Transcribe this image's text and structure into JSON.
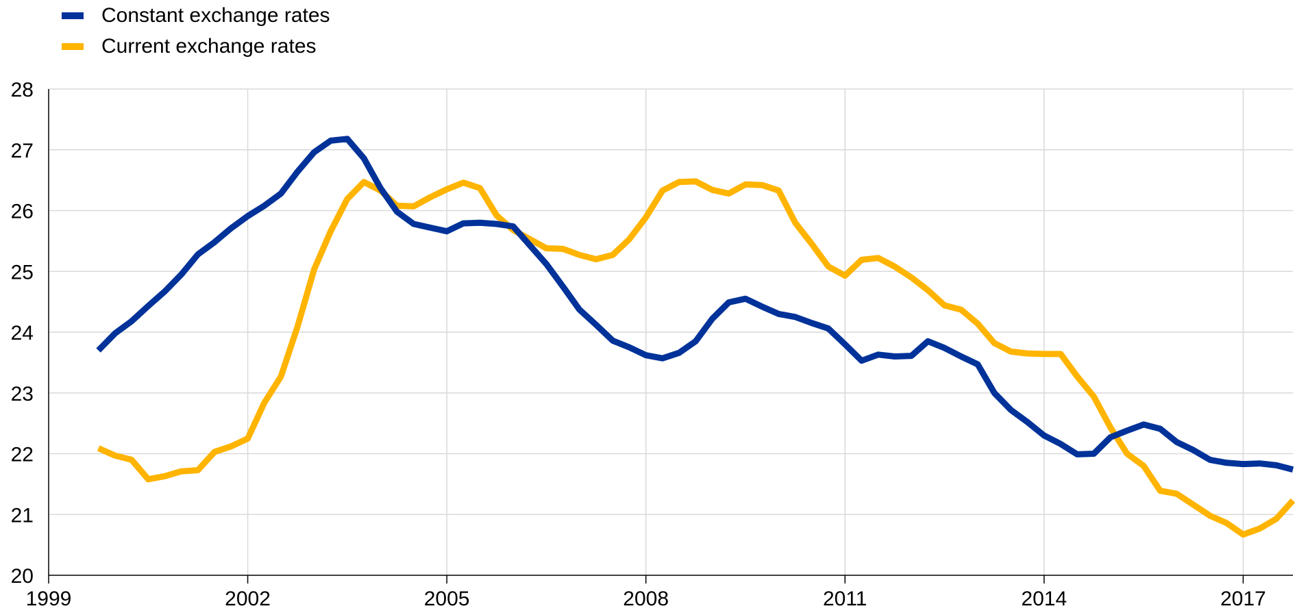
{
  "chart_data": {
    "type": "line",
    "title": "",
    "xlabel": "",
    "ylabel": "",
    "xlim": [
      1999,
      2017.75
    ],
    "ylim": [
      20,
      28
    ],
    "grid": true,
    "legend_position": "top-left",
    "x_ticks": [
      "1999",
      "2002",
      "2005",
      "2008",
      "2011",
      "2014",
      "2017"
    ],
    "y_ticks": [
      "20",
      "21",
      "22",
      "23",
      "24",
      "25",
      "26",
      "27",
      "28"
    ],
    "x": [
      1999.75,
      2000,
      2000.25,
      2000.5,
      2000.75,
      2001,
      2001.25,
      2001.5,
      2001.75,
      2002,
      2002.25,
      2002.5,
      2002.75,
      2003,
      2003.25,
      2003.5,
      2003.75,
      2004,
      2004.25,
      2004.5,
      2004.75,
      2005,
      2005.25,
      2005.5,
      2005.75,
      2006,
      2006.25,
      2006.5,
      2006.75,
      2007,
      2007.25,
      2007.5,
      2007.75,
      2008,
      2008.25,
      2008.5,
      2008.75,
      2009,
      2009.25,
      2009.5,
      2009.75,
      2010,
      2010.25,
      2010.5,
      2010.75,
      2011,
      2011.25,
      2011.5,
      2011.75,
      2012,
      2012.25,
      2012.5,
      2012.75,
      2013,
      2013.25,
      2013.5,
      2013.75,
      2014,
      2014.25,
      2014.5,
      2014.75,
      2015,
      2015.25,
      2015.5,
      2015.75,
      2016,
      2016.25,
      2016.5,
      2016.75,
      2017,
      2017.25,
      2017.5,
      2017.75
    ],
    "series": [
      {
        "name": "Constant exchange rates",
        "color": "#003299",
        "values": [
          23.7,
          23.98,
          24.18,
          24.43,
          24.67,
          24.95,
          25.28,
          25.48,
          25.71,
          25.91,
          26.08,
          26.28,
          26.64,
          26.96,
          27.15,
          27.18,
          26.86,
          26.37,
          25.98,
          25.78,
          25.72,
          25.66,
          25.79,
          25.8,
          25.78,
          25.74,
          25.43,
          25.12,
          24.75,
          24.37,
          24.12,
          23.86,
          23.75,
          23.62,
          23.57,
          23.66,
          23.85,
          24.22,
          24.49,
          24.55,
          24.42,
          24.3,
          24.25,
          24.15,
          24.06,
          23.8,
          23.53,
          23.63,
          23.6,
          23.61,
          23.85,
          23.74,
          23.6,
          23.47,
          23.0,
          22.72,
          22.52,
          22.3,
          22.16,
          21.99,
          22.0,
          22.27,
          22.38,
          22.48,
          22.41,
          22.19,
          22.06,
          21.9,
          21.85,
          21.83,
          21.84,
          21.81,
          21.74
        ]
      },
      {
        "name": "Current exchange rates",
        "color": "#FFB400",
        "values": [
          22.09,
          21.97,
          21.9,
          21.58,
          21.63,
          21.71,
          21.73,
          22.03,
          22.12,
          22.25,
          22.84,
          23.27,
          24.09,
          25.03,
          25.66,
          26.19,
          26.47,
          26.33,
          26.08,
          26.07,
          26.22,
          26.35,
          26.46,
          26.37,
          25.92,
          25.68,
          25.53,
          25.38,
          25.37,
          25.27,
          25.2,
          25.27,
          25.53,
          25.89,
          26.33,
          26.47,
          26.48,
          26.34,
          26.28,
          26.43,
          26.42,
          26.33,
          25.8,
          25.45,
          25.08,
          24.93,
          25.19,
          25.22,
          25.08,
          24.9,
          24.69,
          24.44,
          24.37,
          24.14,
          23.82,
          23.68,
          23.65,
          23.64,
          23.64,
          23.27,
          22.94,
          22.43,
          22.0,
          21.8,
          21.39,
          21.34,
          21.16,
          20.98,
          20.86,
          20.67,
          20.77,
          20.93,
          21.23
        ]
      }
    ]
  }
}
